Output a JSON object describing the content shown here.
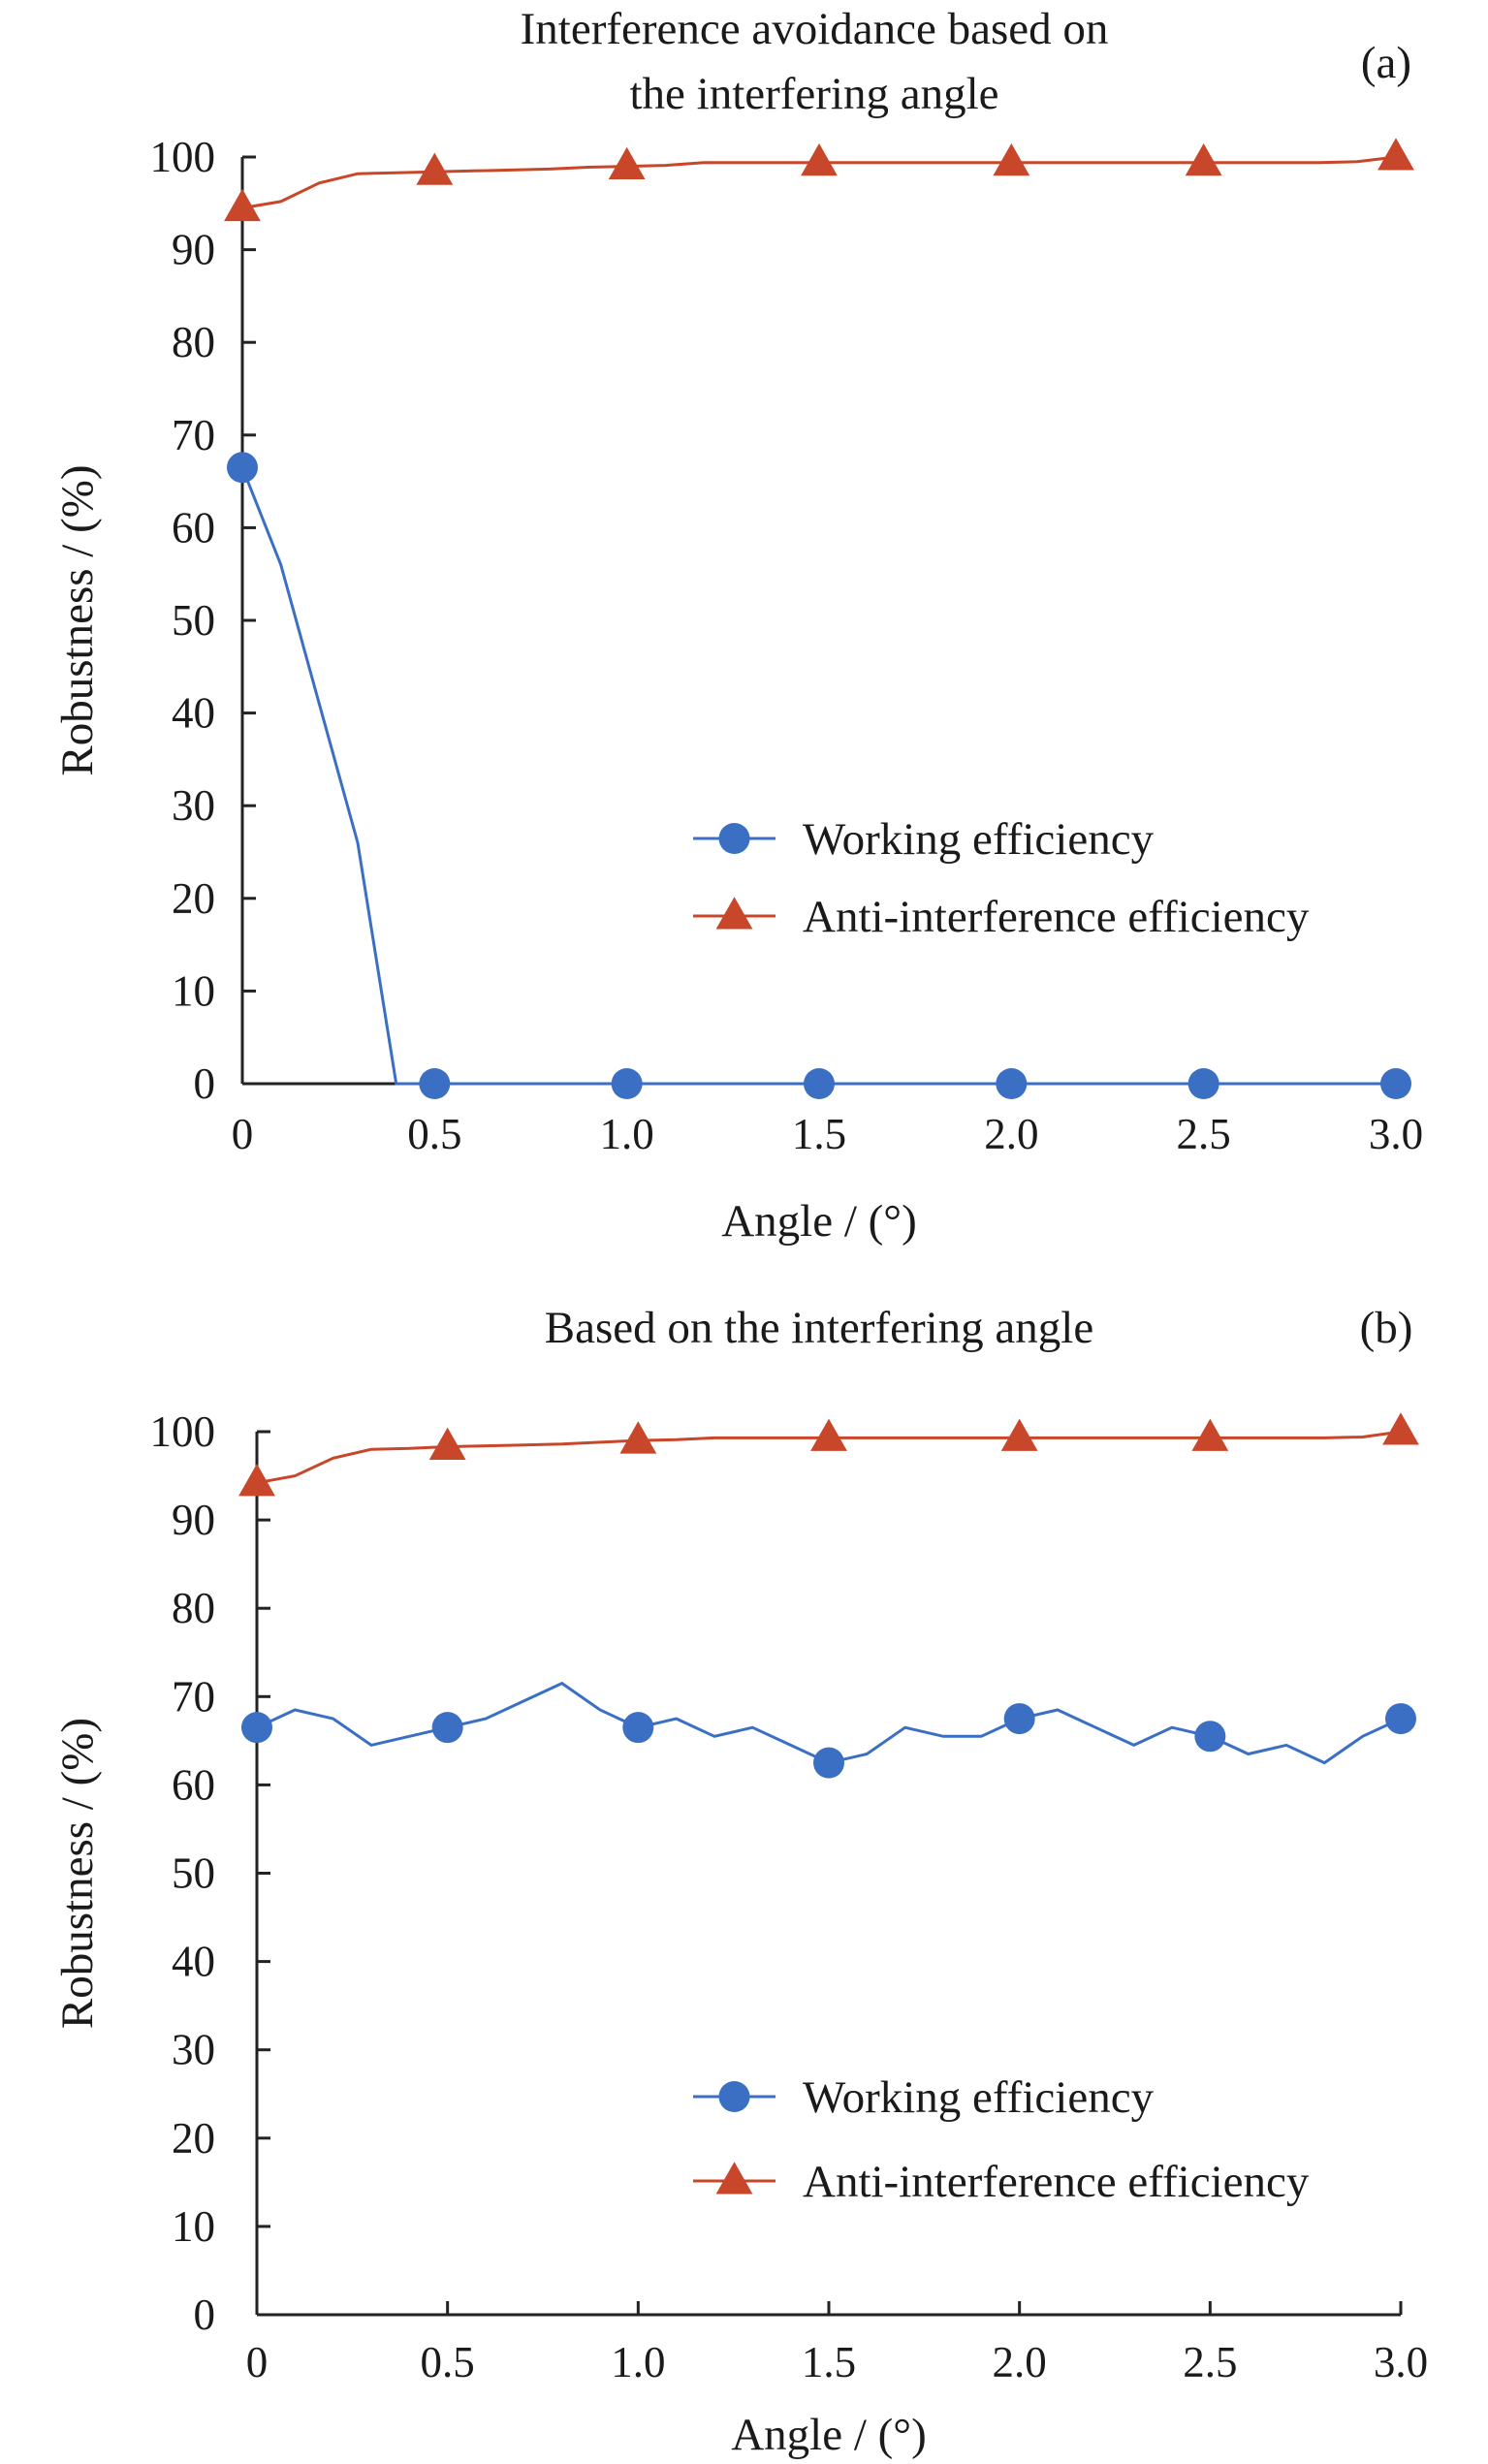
{
  "chart_data": [
    {
      "type": "line",
      "panel_label": "(a)",
      "title": "Interference avoidance based on the interfering angle",
      "title_lines": [
        "Interference avoidance based on",
        "the interfering angle"
      ],
      "xlabel": "Angle / (°)",
      "ylabel": "Robustness / (%)",
      "xlim": [
        0,
        3.0
      ],
      "ylim": [
        0,
        100
      ],
      "x_ticks": [
        0,
        0.5,
        1.0,
        1.5,
        2.0,
        2.5,
        3.0
      ],
      "x_tick_labels": [
        "0",
        "0.5",
        "1.0",
        "1.5",
        "2.0",
        "2.5",
        "3.0"
      ],
      "y_ticks": [
        0,
        10,
        20,
        30,
        40,
        50,
        60,
        70,
        80,
        90,
        100
      ],
      "y_tick_labels": [
        "0",
        "10",
        "20",
        "30",
        "40",
        "50",
        "60",
        "70",
        "80",
        "90",
        "100"
      ],
      "grid": false,
      "legend_position": "center-right",
      "series": [
        {
          "name": "Working efficiency",
          "color": "#3a6fc4",
          "marker": "circle",
          "x": [
            0,
            0.1,
            0.2,
            0.3,
            0.4,
            0.5,
            0.6,
            0.7,
            0.8,
            0.9,
            1.0,
            1.1,
            1.2,
            1.3,
            1.4,
            1.5,
            1.6,
            1.7,
            1.8,
            1.9,
            2.0,
            2.1,
            2.2,
            2.3,
            2.4,
            2.5,
            2.6,
            2.7,
            2.8,
            2.9,
            3.0
          ],
          "y": [
            66.5,
            56,
            41,
            26,
            0,
            0,
            0,
            0,
            0,
            0,
            0,
            0,
            0,
            0,
            0,
            0,
            0,
            0,
            0,
            0,
            0,
            0,
            0,
            0,
            0,
            0,
            0,
            0,
            0,
            0,
            0
          ],
          "marker_x": [
            0,
            0.5,
            1.0,
            1.5,
            2.0,
            2.5,
            3.0
          ]
        },
        {
          "name": "Anti-interference efficiency",
          "color": "#c8472a",
          "marker": "triangle",
          "x": [
            0,
            0.1,
            0.2,
            0.3,
            0.4,
            0.5,
            0.6,
            0.7,
            0.8,
            0.9,
            1.0,
            1.1,
            1.2,
            1.3,
            1.4,
            1.5,
            1.6,
            1.7,
            1.8,
            1.9,
            2.0,
            2.1,
            2.2,
            2.3,
            2.4,
            2.5,
            2.6,
            2.7,
            2.8,
            2.9,
            3.0
          ],
          "y": [
            94.5,
            95.2,
            97.2,
            98.2,
            98.3,
            98.4,
            98.5,
            98.6,
            98.7,
            98.9,
            99.0,
            99.1,
            99.4,
            99.4,
            99.4,
            99.4,
            99.4,
            99.4,
            99.4,
            99.4,
            99.4,
            99.4,
            99.4,
            99.4,
            99.4,
            99.4,
            99.4,
            99.4,
            99.4,
            99.5,
            100
          ],
          "marker_x": [
            0,
            0.5,
            1.0,
            1.5,
            2.0,
            2.5,
            3.0
          ]
        }
      ]
    },
    {
      "type": "line",
      "panel_label": "(b)",
      "title": "Based on the interfering angle",
      "title_lines": [
        "Based on the interfering angle"
      ],
      "xlabel": "Angle / (°)",
      "ylabel": "Robustness / (%)",
      "xlim": [
        0,
        3.0
      ],
      "ylim": [
        0,
        100
      ],
      "x_ticks": [
        0,
        0.5,
        1.0,
        1.5,
        2.0,
        2.5,
        3.0
      ],
      "x_tick_labels": [
        "0",
        "0.5",
        "1.0",
        "1.5",
        "2.0",
        "2.5",
        "3.0"
      ],
      "y_ticks": [
        0,
        10,
        20,
        30,
        40,
        50,
        60,
        70,
        80,
        90,
        100
      ],
      "y_tick_labels": [
        "0",
        "10",
        "20",
        "30",
        "40",
        "50",
        "60",
        "70",
        "80",
        "90",
        "100"
      ],
      "grid": false,
      "legend_position": "bottom-right",
      "series": [
        {
          "name": "Working efficiency",
          "color": "#3a6fc4",
          "marker": "circle",
          "x": [
            0,
            0.1,
            0.2,
            0.3,
            0.4,
            0.5,
            0.6,
            0.7,
            0.8,
            0.9,
            1.0,
            1.1,
            1.2,
            1.3,
            1.4,
            1.5,
            1.6,
            1.7,
            1.8,
            1.9,
            2.0,
            2.1,
            2.2,
            2.3,
            2.4,
            2.5,
            2.6,
            2.7,
            2.8,
            2.9,
            3.0
          ],
          "y": [
            66.5,
            68.5,
            67.5,
            64.5,
            65.5,
            66.5,
            67.5,
            69.5,
            71.5,
            68.5,
            66.5,
            67.5,
            65.5,
            66.5,
            64.5,
            62.5,
            63.5,
            66.5,
            65.5,
            65.5,
            67.5,
            68.5,
            66.5,
            64.5,
            66.5,
            65.5,
            63.5,
            64.5,
            62.5,
            65.5,
            67.5
          ],
          "marker_x": [
            0,
            0.5,
            1.0,
            1.5,
            2.0,
            2.5,
            3.0
          ]
        },
        {
          "name": "Anti-interference efficiency",
          "color": "#c8472a",
          "marker": "triangle",
          "x": [
            0,
            0.1,
            0.2,
            0.3,
            0.4,
            0.5,
            0.6,
            0.7,
            0.8,
            0.9,
            1.0,
            1.1,
            1.2,
            1.3,
            1.4,
            1.5,
            1.6,
            1.7,
            1.8,
            1.9,
            2.0,
            2.1,
            2.2,
            2.3,
            2.4,
            2.5,
            2.6,
            2.7,
            2.8,
            2.9,
            3.0
          ],
          "y": [
            94.2,
            95.0,
            97.0,
            98.0,
            98.1,
            98.3,
            98.4,
            98.5,
            98.6,
            98.8,
            99.0,
            99.1,
            99.3,
            99.3,
            99.3,
            99.3,
            99.3,
            99.3,
            99.3,
            99.3,
            99.3,
            99.3,
            99.3,
            99.3,
            99.3,
            99.3,
            99.3,
            99.3,
            99.3,
            99.4,
            100
          ],
          "marker_x": [
            0,
            0.5,
            1.0,
            1.5,
            2.0,
            2.5,
            3.0
          ]
        }
      ]
    }
  ]
}
